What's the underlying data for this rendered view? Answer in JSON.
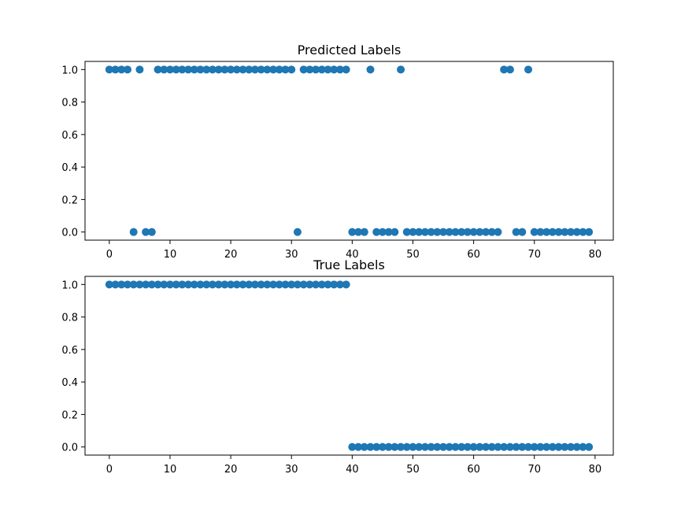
{
  "chart_data": [
    {
      "type": "scatter",
      "title": "Predicted Labels",
      "xlabel": "",
      "ylabel": "",
      "xlim": [
        -4,
        83
      ],
      "ylim": [
        -0.05,
        1.05
      ],
      "xticks": [
        0,
        10,
        20,
        30,
        40,
        50,
        60,
        70,
        80
      ],
      "yticks": [
        0.0,
        0.2,
        0.4,
        0.6,
        0.8,
        1.0
      ],
      "ytick_labels": [
        "0.0",
        "0.2",
        "0.4",
        "0.6",
        "0.8",
        "1.0"
      ],
      "grid": false,
      "marker_color": "#1f77b4",
      "x": [
        0,
        1,
        2,
        3,
        4,
        5,
        6,
        7,
        8,
        9,
        10,
        11,
        12,
        13,
        14,
        15,
        16,
        17,
        18,
        19,
        20,
        21,
        22,
        23,
        24,
        25,
        26,
        27,
        28,
        29,
        30,
        31,
        32,
        33,
        34,
        35,
        36,
        37,
        38,
        39,
        40,
        41,
        42,
        43,
        44,
        45,
        46,
        47,
        48,
        49,
        50,
        51,
        52,
        53,
        54,
        55,
        56,
        57,
        58,
        59,
        60,
        61,
        62,
        63,
        64,
        65,
        66,
        67,
        68,
        69,
        70,
        71,
        72,
        73,
        74,
        75,
        76,
        77,
        78,
        79
      ],
      "y": [
        1,
        1,
        1,
        1,
        0,
        1,
        0,
        0,
        1,
        1,
        1,
        1,
        1,
        1,
        1,
        1,
        1,
        1,
        1,
        1,
        1,
        1,
        1,
        1,
        1,
        1,
        1,
        1,
        1,
        1,
        1,
        0,
        1,
        1,
        1,
        1,
        1,
        1,
        1,
        1,
        0,
        0,
        0,
        1,
        0,
        0,
        0,
        0,
        1,
        0,
        0,
        0,
        0,
        0,
        0,
        0,
        0,
        0,
        0,
        0,
        0,
        0,
        0,
        0,
        0,
        1,
        1,
        0,
        0,
        1,
        0,
        0,
        0,
        0,
        0,
        0,
        0,
        0,
        0,
        0
      ]
    },
    {
      "type": "scatter",
      "title": "True Labels",
      "xlabel": "",
      "ylabel": "",
      "xlim": [
        -4,
        83
      ],
      "ylim": [
        -0.05,
        1.05
      ],
      "xticks": [
        0,
        10,
        20,
        30,
        40,
        50,
        60,
        70,
        80
      ],
      "yticks": [
        0.0,
        0.2,
        0.4,
        0.6,
        0.8,
        1.0
      ],
      "ytick_labels": [
        "0.0",
        "0.2",
        "0.4",
        "0.6",
        "0.8",
        "1.0"
      ],
      "grid": false,
      "marker_color": "#1f77b4",
      "x": [
        0,
        1,
        2,
        3,
        4,
        5,
        6,
        7,
        8,
        9,
        10,
        11,
        12,
        13,
        14,
        15,
        16,
        17,
        18,
        19,
        20,
        21,
        22,
        23,
        24,
        25,
        26,
        27,
        28,
        29,
        30,
        31,
        32,
        33,
        34,
        35,
        36,
        37,
        38,
        39,
        40,
        41,
        42,
        43,
        44,
        45,
        46,
        47,
        48,
        49,
        50,
        51,
        52,
        53,
        54,
        55,
        56,
        57,
        58,
        59,
        60,
        61,
        62,
        63,
        64,
        65,
        66,
        67,
        68,
        69,
        70,
        71,
        72,
        73,
        74,
        75,
        76,
        77,
        78,
        79
      ],
      "y": [
        1,
        1,
        1,
        1,
        1,
        1,
        1,
        1,
        1,
        1,
        1,
        1,
        1,
        1,
        1,
        1,
        1,
        1,
        1,
        1,
        1,
        1,
        1,
        1,
        1,
        1,
        1,
        1,
        1,
        1,
        1,
        1,
        1,
        1,
        1,
        1,
        1,
        1,
        1,
        1,
        0,
        0,
        0,
        0,
        0,
        0,
        0,
        0,
        0,
        0,
        0,
        0,
        0,
        0,
        0,
        0,
        0,
        0,
        0,
        0,
        0,
        0,
        0,
        0,
        0,
        0,
        0,
        0,
        0,
        0,
        0,
        0,
        0,
        0,
        0,
        0,
        0,
        0,
        0,
        0
      ]
    }
  ]
}
